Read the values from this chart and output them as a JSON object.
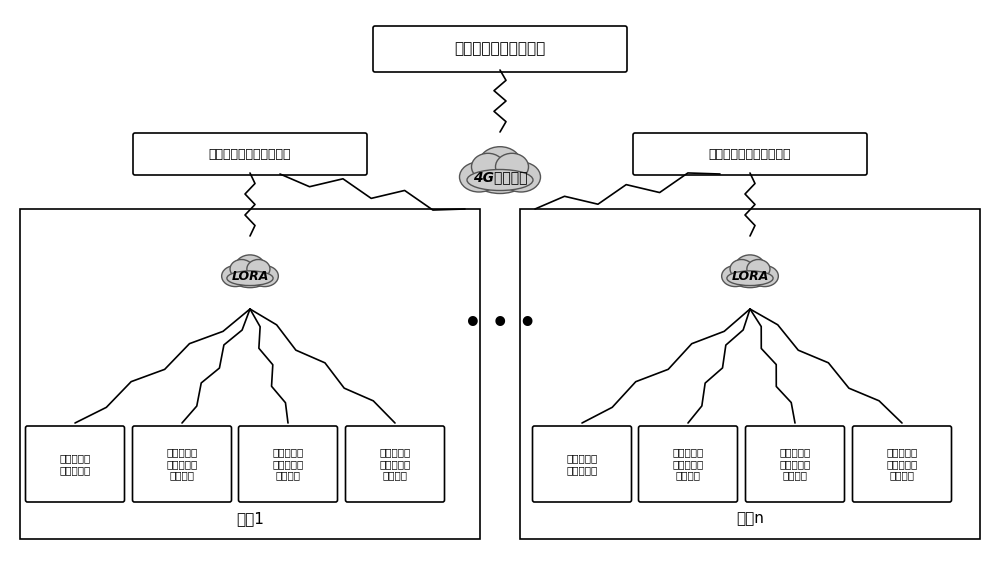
{
  "title": "远程智慧运维数据中心",
  "cloud_4g_label": "4G无线网络",
  "lora_label": "LORA",
  "terminal_label": "分布式光伏数据接入终端",
  "zone1_label": "区域1",
  "zonen_label": "区域n",
  "env_unit_label": "光伏环境参\n数监测单元",
  "elec_unit_label": "光伏电气参\n数无线数据\n采集单元",
  "bg_color": "#ffffff",
  "box_color": "#ffffff",
  "box_edge": "#000000",
  "cloud_color": "#cccccc",
  "zone_bg": "#f5f5f5",
  "dots": "• • •"
}
